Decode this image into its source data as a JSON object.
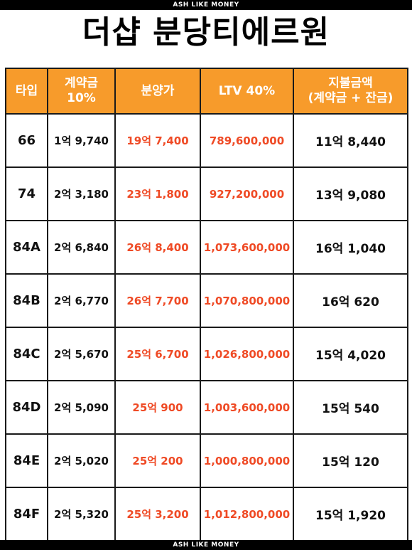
{
  "brand": "ASH LIKE MONEY",
  "title": "더샵 분당티에르원",
  "headers": [
    "타입",
    "계약금\n10%",
    "분양가",
    "LTV 40%",
    "지불금액\n(계약금 + 잔금)"
  ],
  "rows": [
    {
      "type": "66",
      "deposit": "1억 9,740",
      "price": "19억 7,400",
      "ltv": "789,600,000",
      "payment": "11억 8,440"
    },
    {
      "type": "74",
      "deposit": "2억 3,180",
      "price": "23억 1,800",
      "ltv": "927,200,000",
      "payment": "13억 9,080"
    },
    {
      "type": "84A",
      "deposit": "2억 6,840",
      "price": "26억 8,400",
      "ltv": "1,073,600,000",
      "payment": "16억 1,040"
    },
    {
      "type": "84B",
      "deposit": "2억 6,770",
      "price": "26억 7,700",
      "ltv": "1,070,800,000",
      "payment": "16억 620"
    },
    {
      "type": "84C",
      "deposit": "2억 5,670",
      "price": "25억 6,700",
      "ltv": "1,026,800,000",
      "payment": "15억 4,020"
    },
    {
      "type": "84D",
      "deposit": "2억 5,090",
      "price": "25억 900",
      "ltv": "1,003,600,000",
      "payment": "15억 540"
    },
    {
      "type": "84E",
      "deposit": "2억 5,020",
      "price": "25억 200",
      "ltv": "1,000,800,000",
      "payment": "15억 120"
    },
    {
      "type": "84F",
      "deposit": "2억 5,320",
      "price": "25억 3,200",
      "ltv": "1,012,800,000",
      "payment": "15억 1,920"
    }
  ],
  "colors": {
    "header_bg": "#f79b2b",
    "accent_red": "#ef4a25"
  }
}
